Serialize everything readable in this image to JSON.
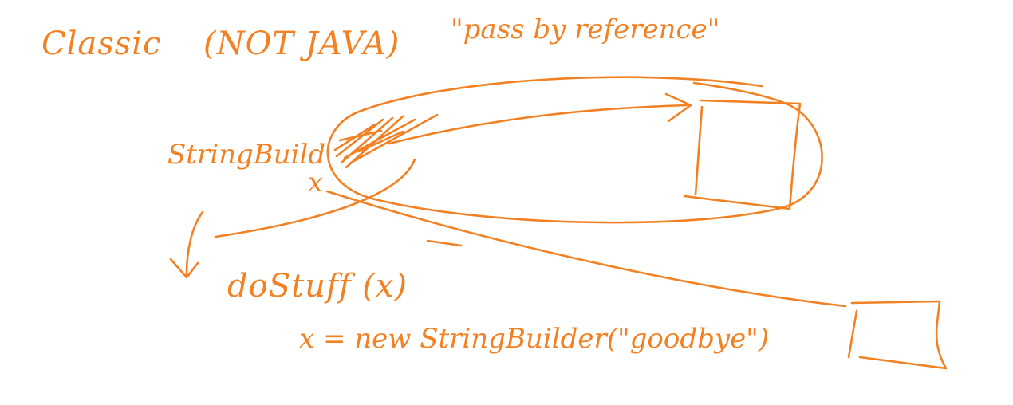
{
  "ink_color": "#f28124",
  "title": {
    "classic": "Classic",
    "not_java": "(NOT JAVA)",
    "pass_by_reference": "\"pass by reference\""
  },
  "variable": {
    "type": "StringBuild",
    "name": "x"
  },
  "code": {
    "call": "doStuff (x)",
    "assignment": "x = new StringBuilder(\"goodbye\")"
  }
}
